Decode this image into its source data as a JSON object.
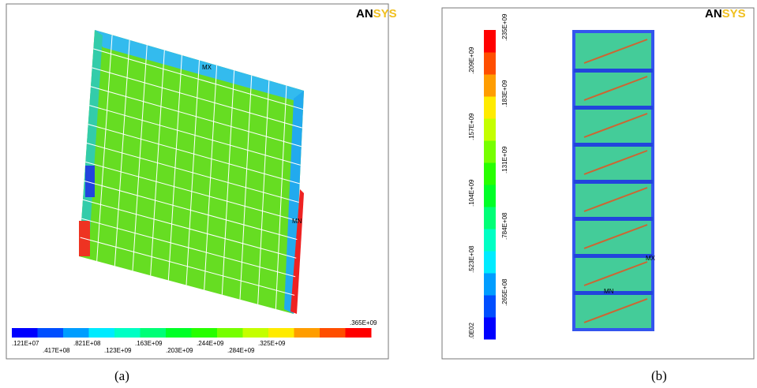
{
  "panel_a": {
    "logo": [
      "AN",
      "SYS"
    ],
    "markers": [
      "MX",
      "MN"
    ],
    "legend_labels": [
      ".121E+07",
      ".417E+08",
      ".821E+08",
      ".123E+09",
      ".163E+09",
      ".203E+09",
      ".244E+09",
      ".284E+09",
      ".325E+09",
      ".365E+09"
    ],
    "caption": "(a)"
  },
  "panel_b": {
    "logo": [
      "AN",
      "SYS"
    ],
    "markers": [
      "MX",
      "MN"
    ],
    "legend_labels": [
      ".0E02",
      ".265E+08",
      ".523E+08",
      ".784E+08",
      ".104E+09",
      ".131E+09",
      ".157E+09",
      ".183E+09",
      ".209E+09",
      ".235E+09"
    ],
    "caption": "(b)"
  }
}
